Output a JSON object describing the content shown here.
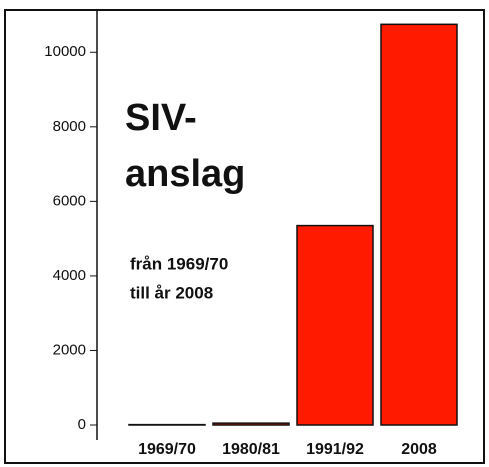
{
  "chart_data": {
    "type": "bar",
    "title": [
      "SIV-",
      "anslag"
    ],
    "subtitle": [
      "från 1969/70",
      "till år 2008"
    ],
    "categories": [
      "1969/70",
      "1980/81",
      "1991/92",
      "2008"
    ],
    "values": [
      10,
      50,
      5350,
      10750
    ],
    "color": "#ff1a00",
    "ylim": [
      0,
      11000
    ],
    "yticks": [
      0,
      2000,
      4000,
      6000,
      8000,
      10000
    ]
  }
}
